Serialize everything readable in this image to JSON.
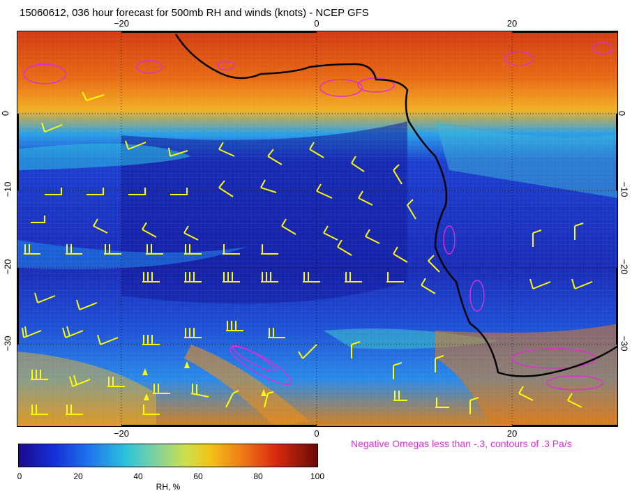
{
  "title": "15060612, 036 hour forecast for 500mb RH and winds (knots) - NCEP GFS",
  "note": "Negative Omegas less than -.3, contours of .3 Pa/s",
  "axes": {
    "lon_ticks": [
      "−20",
      "0",
      "20"
    ],
    "lat_ticks": [
      "0",
      "−10",
      "−20",
      "−30"
    ]
  },
  "colorbar": {
    "label": "RH, %",
    "ticks": [
      "0",
      "20",
      "40",
      "60",
      "80",
      "100"
    ]
  },
  "colors": {
    "coastline": "#000000",
    "wind_barbs": "#ffff00",
    "omega_contours": "#e02bd8"
  }
}
